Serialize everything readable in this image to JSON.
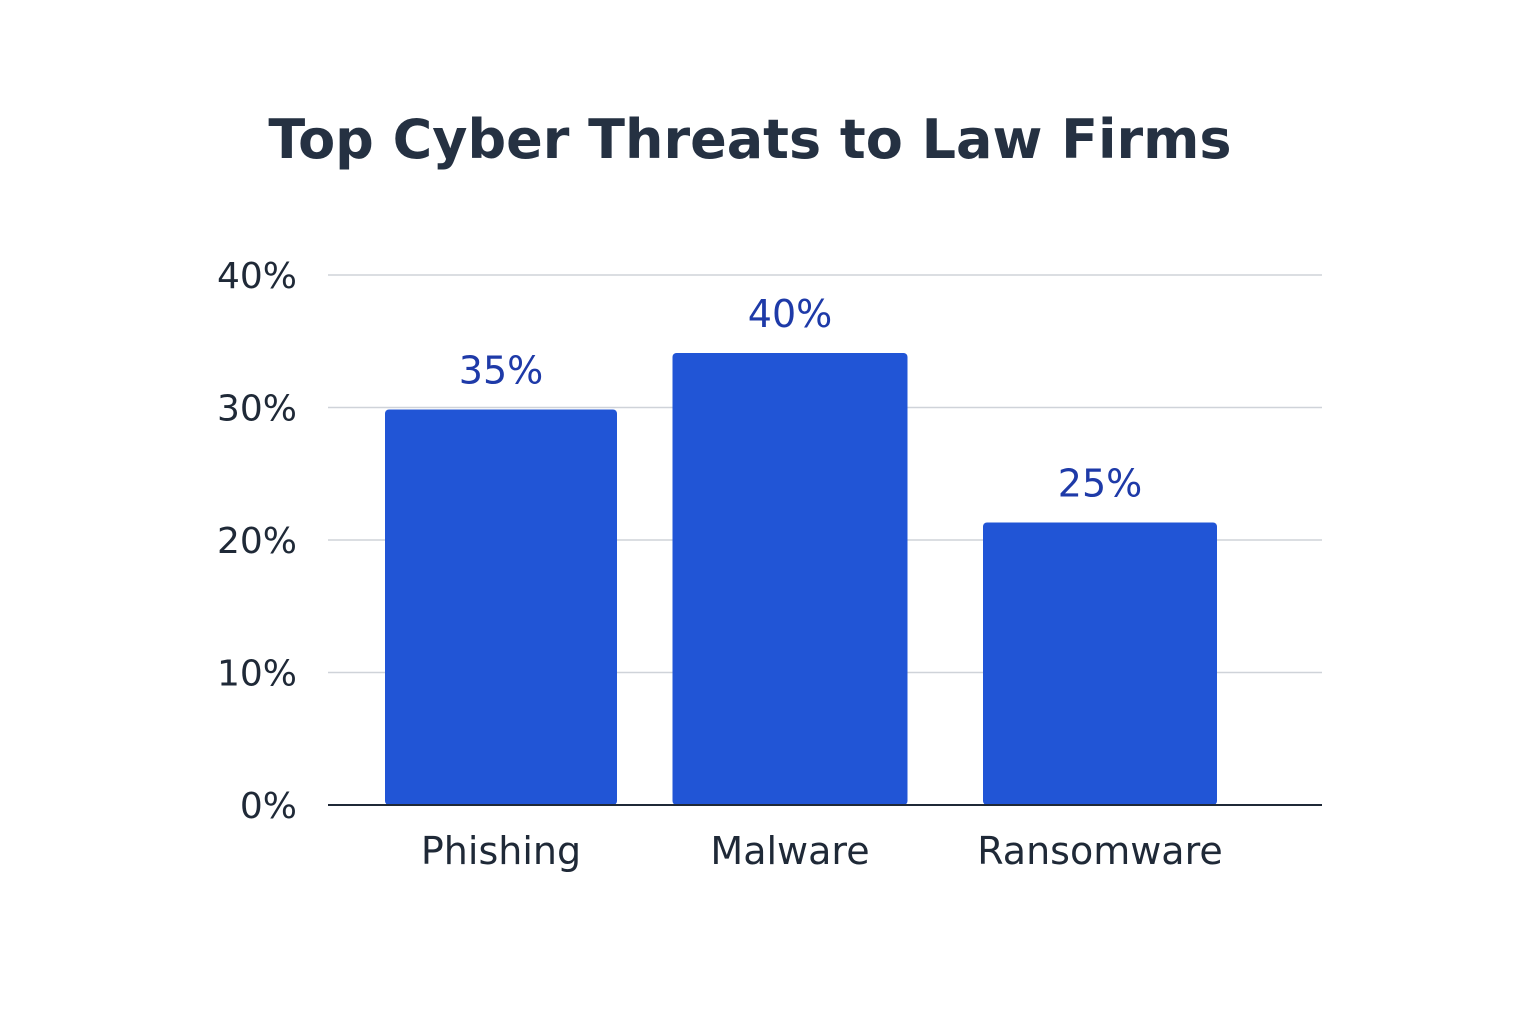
{
  "chart_data": {
    "type": "bar",
    "title": "Top Cyber Threats to Law Firms",
    "xlabel": "",
    "ylabel": "",
    "categories": [
      "Phishing",
      "Malware",
      "Ransomware"
    ],
    "values": [
      35,
      40,
      25
    ],
    "data_labels": [
      "35%",
      "40%",
      "25%"
    ],
    "ylim": [
      0,
      40
    ],
    "yticks": [
      0,
      10,
      20,
      30,
      40
    ],
    "ytick_labels": [
      "0%",
      "10%",
      "20%",
      "30%",
      "40%"
    ],
    "grid": true,
    "bar_color": "#2155d6",
    "label_color": "#1e3aa8"
  }
}
